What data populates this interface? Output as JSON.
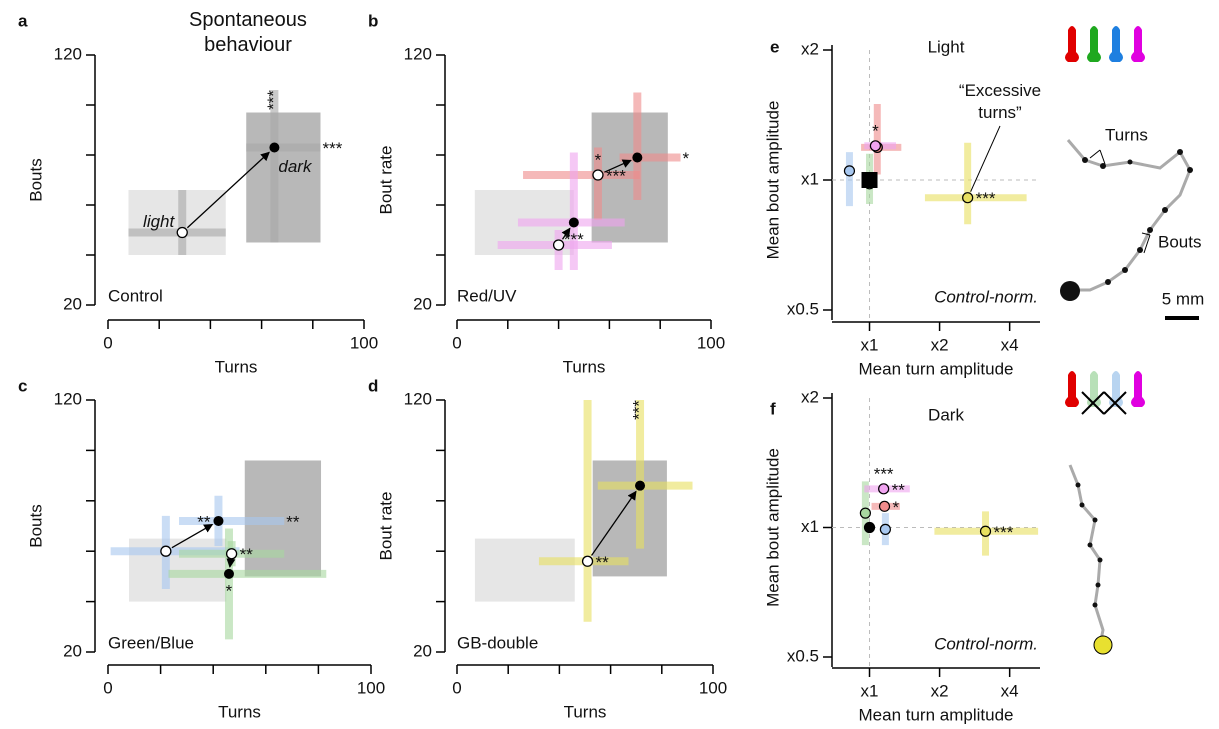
{
  "chart_data": [
    {
      "type": "scatter",
      "panel": "a",
      "title": "Spontaneous behaviour",
      "xlabel": "Turns",
      "ylabel": "Bouts",
      "condition": "Control",
      "labels": [
        "light",
        "dark"
      ],
      "xlim": [
        0,
        100
      ],
      "ylim": [
        20,
        120
      ],
      "xticks": [
        0,
        100
      ],
      "yticks": [
        20,
        120
      ],
      "xminor": [
        20,
        40,
        60,
        80
      ],
      "yminor": [
        40,
        60,
        80,
        100
      ],
      "boxes": [
        {
          "color": "#e6e6e6",
          "x": [
            8,
            46
          ],
          "y": [
            40,
            66
          ]
        },
        {
          "color": "#b8b8b8",
          "x": [
            54,
            83
          ],
          "y": [
            45,
            97
          ]
        }
      ],
      "pairs": [
        {
          "color": "#a8a8a8",
          "light": {
            "x": 29,
            "y": 49,
            "xerr": [
              8,
              46
            ],
            "yerr": [
              40,
              66
            ]
          },
          "dark": {
            "x": 65,
            "y": 83,
            "xerr": [
              54,
              83
            ],
            "yerr": [
              45,
              106
            ],
            "note_top": "***",
            "note_end": "***"
          }
        }
      ]
    },
    {
      "type": "scatter",
      "panel": "b",
      "xlabel": "Turns",
      "ylabel": "Bout rate",
      "condition": "Red/UV",
      "xlim": [
        0,
        100
      ],
      "ylim": [
        20,
        120
      ],
      "xticks": [
        0,
        100
      ],
      "yticks": [
        20,
        120
      ],
      "xminor": [
        20,
        40,
        60,
        80
      ],
      "yminor": [
        40,
        60,
        80,
        100
      ],
      "boxes": [
        {
          "color": "#e6e6e6",
          "x": [
            7,
            46
          ],
          "y": [
            40,
            66
          ]
        },
        {
          "color": "#b8b8b8",
          "x": [
            53,
            83
          ],
          "y": [
            45,
            97
          ]
        }
      ],
      "pairs": [
        {
          "color": "#f08c8c",
          "light": {
            "x": 55.5,
            "y": 72,
            "xerr": [
              26,
              72
            ],
            "yerr": [
              54,
              83
            ],
            "note_above": "*",
            "note": "***"
          },
          "dark": {
            "x": 71,
            "y": 79,
            "xerr": [
              64,
              88
            ],
            "yerr": [
              62,
              105
            ],
            "note_end": "*"
          }
        },
        {
          "color": "#f0a4f0",
          "light": {
            "x": 40,
            "y": 44,
            "xerr": [
              16,
              61
            ],
            "yerr": [
              34,
              50
            ]
          },
          "dark": {
            "x": 46,
            "y": 53,
            "xerr": [
              24,
              66
            ],
            "yerr": [
              34,
              81
            ],
            "note_below": "***"
          }
        }
      ]
    },
    {
      "type": "scatter",
      "panel": "c",
      "xlabel": "Turns",
      "ylabel": "Bouts",
      "condition": "Green/Blue",
      "xlim": [
        0,
        100
      ],
      "ylim": [
        20,
        120
      ],
      "xticks": [
        0,
        100
      ],
      "yticks": [
        20,
        120
      ],
      "xminor": [
        20,
        40,
        60,
        80
      ],
      "yminor": [
        40,
        60,
        80,
        100
      ],
      "boxes": [
        {
          "color": "#e6e6e6",
          "x": [
            8,
            45
          ],
          "y": [
            40,
            65
          ]
        },
        {
          "color": "#b8b8b8",
          "x": [
            52,
            81
          ],
          "y": [
            50,
            96
          ]
        }
      ],
      "pairs": [
        {
          "color": "#a8c8f0",
          "light": {
            "x": 22,
            "y": 60,
            "xerr": [
              1,
              50
            ],
            "yerr": [
              45,
              74
            ]
          },
          "dark": {
            "x": 42,
            "y": 72,
            "xerr": [
              27,
              67
            ],
            "yerr": [
              62,
              82
            ],
            "note_left": "**",
            "note_end": "**"
          }
        },
        {
          "color": "#a8d8a0",
          "light": {
            "x": 47,
            "y": 59,
            "xerr": [
              27,
              67
            ],
            "yerr": [
              54,
              64
            ],
            "note": "**"
          },
          "dark": {
            "x": 46,
            "y": 51,
            "xerr": [
              23,
              83
            ],
            "yerr": [
              25,
              69
            ],
            "note_below": "*"
          }
        }
      ]
    },
    {
      "type": "scatter",
      "panel": "d",
      "xlabel": "Turns",
      "ylabel": "Bout rate",
      "condition": "GB-double",
      "xlim": [
        0,
        100
      ],
      "ylim": [
        20,
        120
      ],
      "xticks": [
        0,
        100
      ],
      "yticks": [
        20,
        120
      ],
      "xminor": [
        20,
        40,
        60,
        80
      ],
      "yminor": [
        40,
        60,
        80,
        100
      ],
      "boxes": [
        {
          "color": "#e6e6e6",
          "x": [
            7,
            46
          ],
          "y": [
            40,
            65
          ]
        },
        {
          "color": "#b8b8b8",
          "x": [
            53,
            82
          ],
          "y": [
            50,
            96
          ]
        }
      ],
      "pairs": [
        {
          "color": "#e8e060",
          "light": {
            "x": 51,
            "y": 56,
            "xerr": [
              32,
              67
            ],
            "yerr": [
              32,
              120
            ],
            "note": "**"
          },
          "dark": {
            "x": 71.5,
            "y": 86,
            "xerr": [
              55,
              92
            ],
            "yerr": [
              61,
              120
            ],
            "note_top": "***"
          }
        }
      ]
    },
    {
      "type": "scatter",
      "panel": "e",
      "log": true,
      "title": "Light",
      "xlabel": "Mean turn amplitude",
      "ylabel": "Mean bout amplitude",
      "note": "Control-norm.",
      "annotation": "“Excessive turns”",
      "reference": 1,
      "xlim": [
        0.69,
        5.4
      ],
      "ylim": [
        0.5,
        2
      ],
      "xticks": [
        {
          "value": 1,
          "label": "x1"
        },
        {
          "value": 2,
          "label": "x2"
        },
        {
          "value": 4,
          "label": "x4"
        }
      ],
      "yticks": [
        {
          "value": 0.5,
          "label": "x0.5"
        },
        {
          "value": 1,
          "label": "x1"
        },
        {
          "value": 2,
          "label": "x2"
        }
      ],
      "points": [
        {
          "color": "#a8c8f0",
          "x": 0.82,
          "y": 1.05,
          "yerr": [
            0.87,
            1.16
          ]
        },
        {
          "color": "#a8d8a0",
          "x": 1,
          "y": 0.98,
          "yerr": [
            0.88,
            1.15
          ]
        },
        {
          "color": "#000000",
          "marker": "square",
          "x": 1,
          "y": 1
        },
        {
          "color": "#f08c8c",
          "x": 1.08,
          "y": 1.19,
          "xerr": [
            0.92,
            1.37
          ],
          "yerr": [
            1.03,
            1.5
          ]
        },
        {
          "color": "#f0a4f0",
          "x": 1.06,
          "y": 1.2,
          "xerr": [
            0.95,
            1.3
          ],
          "note_above": "*"
        },
        {
          "color": "#e8e060",
          "x": 2.64,
          "y": 0.91,
          "xerr": [
            1.73,
            4.73
          ],
          "yerr": [
            0.79,
            1.22
          ],
          "note": "***"
        }
      ]
    },
    {
      "type": "scatter",
      "panel": "f",
      "log": true,
      "title": "Dark",
      "xlabel": "Mean turn amplitude",
      "ylabel": "Mean bout amplitude",
      "note": "Control-norm.",
      "reference": 1,
      "xlim": [
        0.69,
        5.4
      ],
      "ylim": [
        0.5,
        2
      ],
      "xticks": [
        {
          "value": 1,
          "label": "x1"
        },
        {
          "value": 2,
          "label": "x2"
        },
        {
          "value": 4,
          "label": "x4"
        }
      ],
      "yticks": [
        {
          "value": 0.5,
          "label": "x0.5"
        },
        {
          "value": 1,
          "label": "x1"
        },
        {
          "value": 2,
          "label": "x2"
        }
      ],
      "points": [
        {
          "color": "#a8c8f0",
          "x": 1.17,
          "y": 0.99,
          "yerr": [
            0.91,
            1.08
          ]
        },
        {
          "color": "#a8d8a0",
          "x": 0.96,
          "y": 1.08,
          "yerr": [
            0.91,
            1.28
          ]
        },
        {
          "color": "#000000",
          "x": 1,
          "y": 1
        },
        {
          "color": "#f08c8c",
          "x": 1.16,
          "y": 1.12,
          "xerr": [
            1.02,
            1.35
          ],
          "note": "*"
        },
        {
          "color": "#f0a4f0",
          "x": 1.15,
          "y": 1.23,
          "xerr": [
            0.95,
            1.49
          ],
          "note": "**",
          "note_above": "***"
        },
        {
          "color": "#e8e060",
          "x": 3.15,
          "y": 0.98,
          "xerr": [
            1.9,
            5.3
          ],
          "yerr": [
            0.86,
            1.09
          ],
          "note": "***"
        }
      ]
    }
  ],
  "illustration": {
    "turns": "Turns",
    "bouts": "Bouts",
    "scale": "5 mm"
  }
}
